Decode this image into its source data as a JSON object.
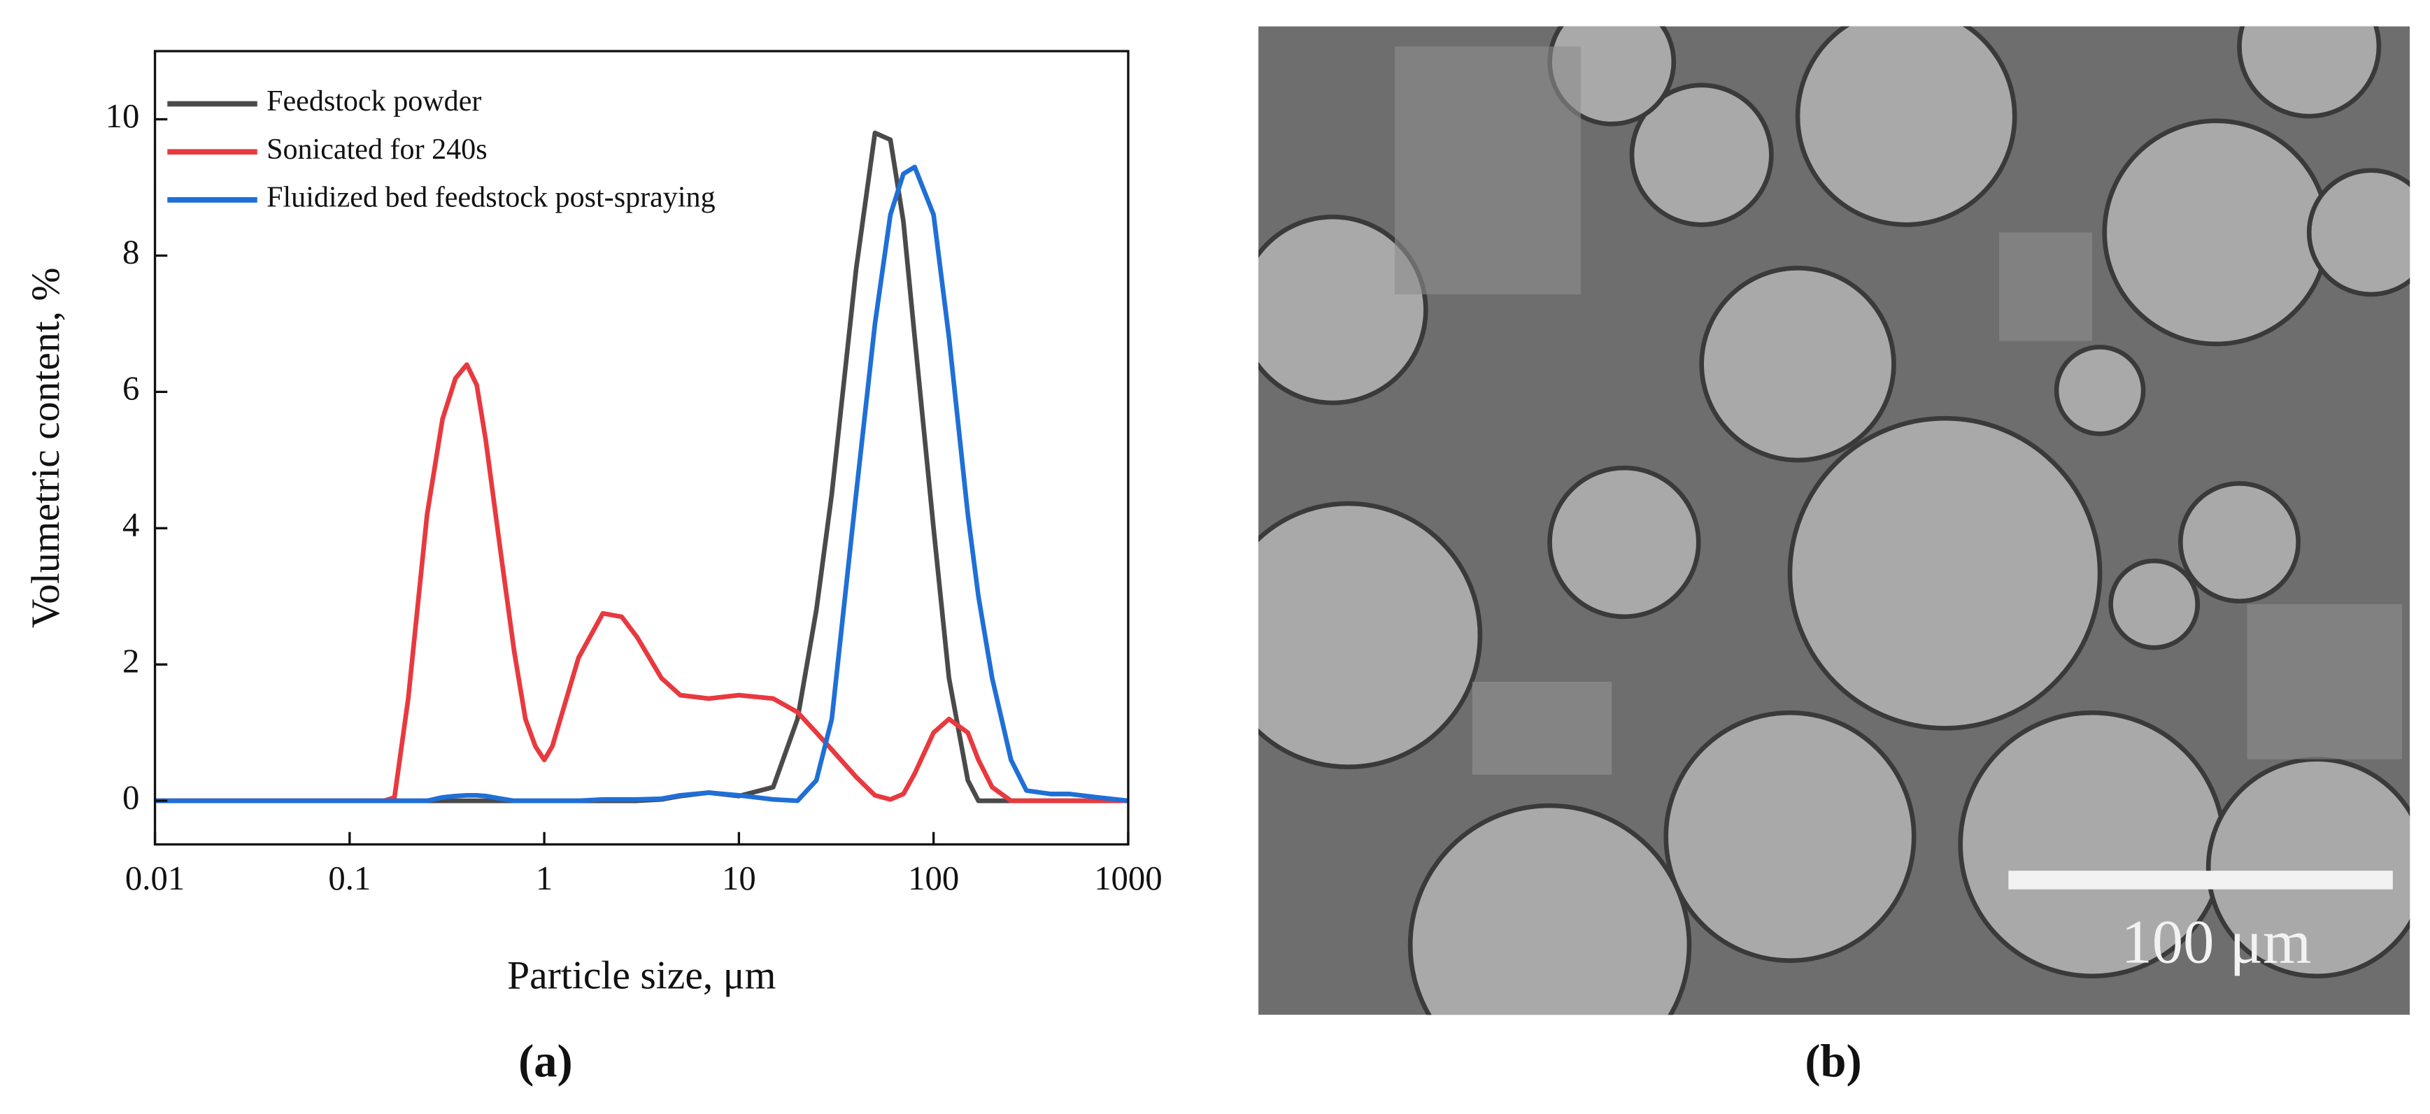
{
  "chart_data": {
    "type": "line",
    "x_label": "Particle size, μm",
    "y_label": "Volumetric content, %",
    "caption": "(a)",
    "x": [
      0.01,
      0.1,
      0.15,
      0.17,
      0.2,
      0.25,
      0.3,
      0.35,
      0.4,
      0.45,
      0.5,
      0.6,
      0.7,
      0.8,
      0.9,
      1,
      1.1,
      1.3,
      1.5,
      2,
      2.5,
      3,
      4,
      5,
      7,
      10,
      15,
      20,
      25,
      30,
      40,
      50,
      60,
      70,
      80,
      100,
      120,
      150,
      170,
      200,
      250,
      300,
      400,
      500,
      700,
      1000
    ],
    "series": [
      {
        "name": "Feedstock powder",
        "color": "#4a4a4a",
        "values": [
          0,
          0,
          0,
          0,
          0,
          0,
          0,
          0,
          0,
          0,
          0,
          0,
          0,
          0,
          0,
          0,
          0,
          0,
          0,
          0,
          0,
          0,
          0.02,
          0.07,
          0.12,
          0.07,
          0.2,
          1.2,
          2.8,
          4.5,
          7.8,
          9.8,
          9.7,
          8.5,
          6.8,
          4.0,
          1.8,
          0.3,
          0,
          0,
          0,
          0,
          0,
          0,
          0,
          0
        ]
      },
      {
        "name": "Sonicated for 240s",
        "color": "#e8393f",
        "values": [
          0,
          0,
          0,
          0.05,
          1.5,
          4.2,
          5.6,
          6.2,
          6.4,
          6.1,
          5.3,
          3.6,
          2.2,
          1.2,
          0.8,
          0.6,
          0.8,
          1.5,
          2.1,
          2.75,
          2.7,
          2.4,
          1.8,
          1.55,
          1.5,
          1.55,
          1.5,
          1.3,
          1.0,
          0.75,
          0.35,
          0.08,
          0.02,
          0.1,
          0.4,
          1.0,
          1.2,
          1.0,
          0.6,
          0.2,
          0,
          0,
          0,
          0,
          0,
          0
        ]
      },
      {
        "name": "Fluidized bed feedstock post-spraying",
        "color": "#1f6fd6",
        "values": [
          0,
          0,
          0,
          0,
          0,
          0,
          0.05,
          0.07,
          0.08,
          0.08,
          0.07,
          0.03,
          0,
          0,
          0,
          0,
          0,
          0,
          0,
          0.02,
          0.02,
          0.02,
          0.03,
          0.08,
          0.12,
          0.08,
          0.02,
          0,
          0.3,
          1.2,
          4.5,
          7.0,
          8.6,
          9.2,
          9.3,
          8.6,
          6.8,
          4.2,
          3.0,
          1.8,
          0.6,
          0.15,
          0.1,
          0.1,
          0.05,
          0
        ]
      }
    ],
    "xlim": [
      0.01,
      1000
    ],
    "xticks": [
      0.01,
      0.1,
      1,
      10,
      100,
      1000
    ],
    "log_x": true,
    "ylim": [
      -0.64,
      11
    ],
    "yticks": [
      0,
      2,
      4,
      6,
      8,
      10
    ],
    "legend": "upper left",
    "grid": false
  },
  "image_panel": {
    "scale_bar_label": "100 μm",
    "caption": "(b)"
  }
}
